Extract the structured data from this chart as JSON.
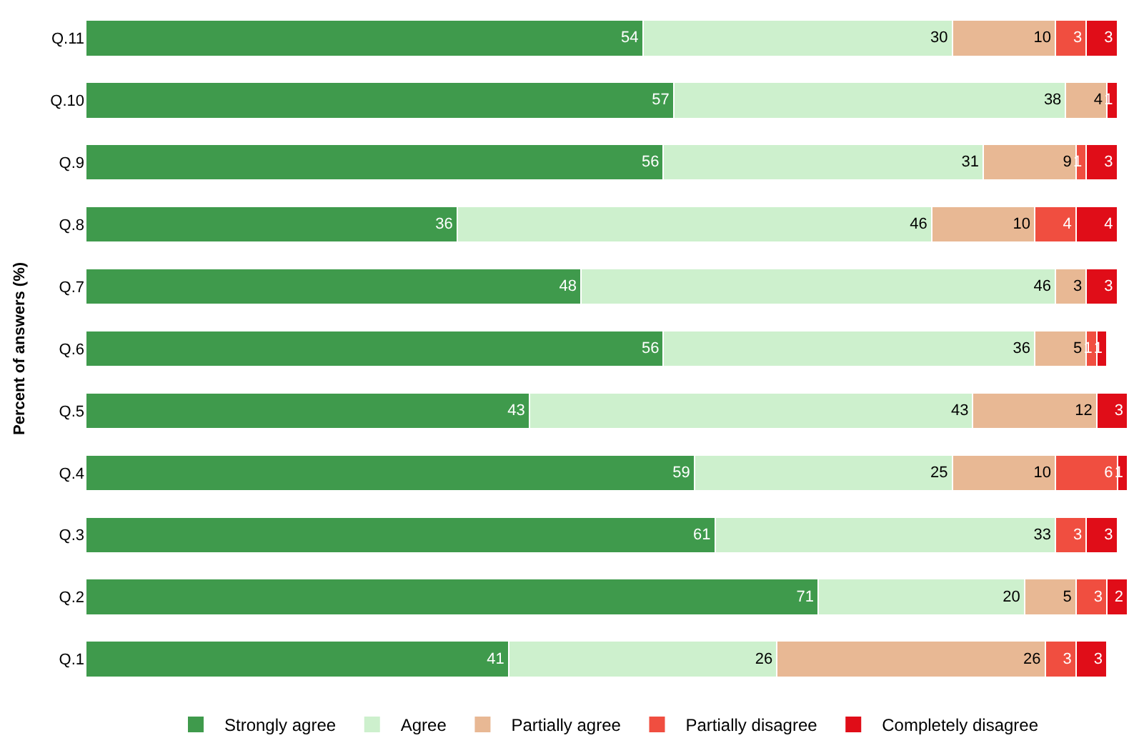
{
  "chart_data": {
    "type": "bar",
    "orientation": "horizontal",
    "stacked": true,
    "data_labels": true,
    "legend": "bottom",
    "ylabel": "Percent of answers (%)",
    "categories": [
      "Q.11",
      "Q.10",
      "Q.9",
      "Q.8",
      "Q.7",
      "Q.6",
      "Q.5",
      "Q.4",
      "Q.3",
      "Q.2",
      "Q.1"
    ],
    "series": [
      {
        "name": "Strongly agree",
        "color": "#3f9a4c",
        "values": [
          54,
          57,
          56,
          36,
          48,
          56,
          43,
          59,
          61,
          71,
          41
        ]
      },
      {
        "name": "Agree",
        "color": "#cdf0cd",
        "values": [
          30,
          38,
          31,
          46,
          46,
          36,
          43,
          25,
          33,
          20,
          26
        ]
      },
      {
        "name": "Partially agree",
        "color": "#e8b894",
        "values": [
          10,
          4,
          9,
          10,
          3,
          5,
          12,
          10,
          null,
          5,
          26
        ]
      },
      {
        "name": "Partially disagree",
        "color": "#f04e40",
        "values": [
          3,
          null,
          1,
          4,
          null,
          1,
          null,
          6,
          3,
          3,
          3
        ]
      },
      {
        "name": "Completely disagree",
        "color": "#e00d18",
        "values": [
          3,
          1,
          3,
          4,
          3,
          1,
          3,
          1,
          3,
          2,
          3
        ]
      }
    ]
  }
}
